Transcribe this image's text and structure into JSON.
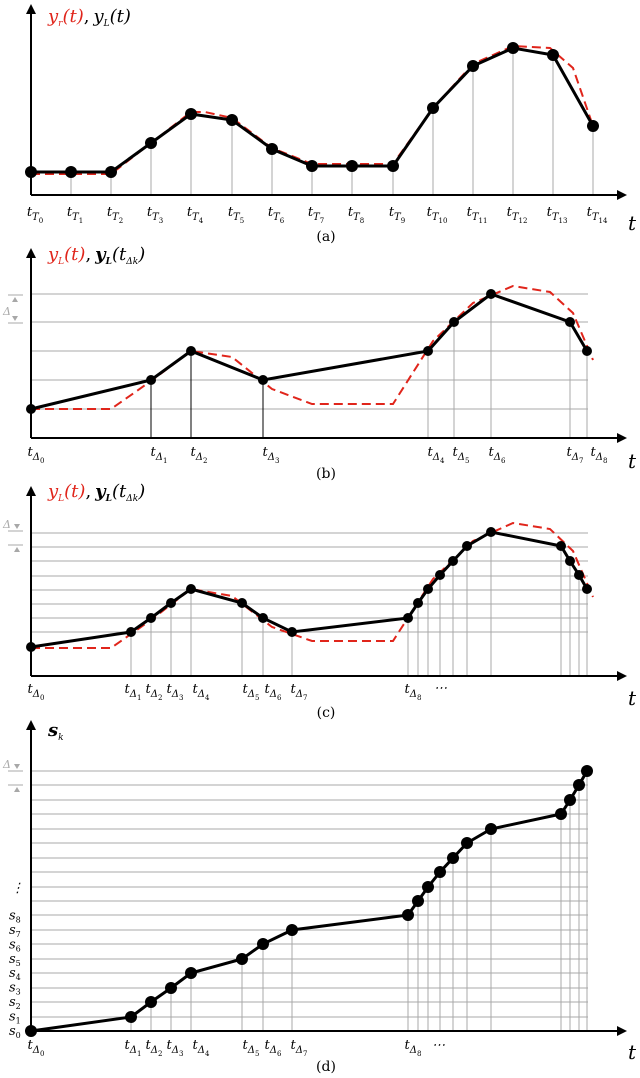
{
  "colors": {
    "red": "#e0251b",
    "black": "#000000",
    "grid": "#a8a8a8"
  },
  "panel_a": {
    "caption": "(a)",
    "axis_label": "t",
    "title": {
      "red": "y_r(t)",
      "black": "y_L(t)",
      "sep": ","
    },
    "ticks": [
      "t_{T_0}",
      "t_{T_1}",
      "t_{T_2}",
      "t_{T_3}",
      "t_{T_4}",
      "t_{T_5}",
      "t_{T_6}",
      "t_{T_7}",
      "t_{T_8}",
      "t_{T_9}",
      "t_{T_10}",
      "t_{T_11}",
      "t_{T_12}",
      "t_{T_13}",
      "t_{T_14}"
    ]
  },
  "panel_b": {
    "caption": "(b)",
    "axis_label": "t",
    "title": {
      "red": "y_L(t)",
      "black": "y_L(t_Δk)",
      "sep": ","
    },
    "delta_label": "Δ",
    "ticks": [
      "t_Δ0",
      "t_Δ1",
      "t_Δ2",
      "t_Δ3",
      "t_Δ4",
      "t_Δ5",
      "t_Δ6",
      "t_Δ7",
      "t_Δ8"
    ]
  },
  "panel_c": {
    "caption": "(c)",
    "axis_label": "t",
    "title": {
      "red": "y_L(t)",
      "black": "y_L(t_Δk)",
      "sep": ","
    },
    "delta_label": "Δ",
    "ticks": [
      "t_Δ0",
      "t_Δ1",
      "t_Δ2",
      "t_Δ3",
      "t_Δ4",
      "t_Δ5",
      "t_Δ6",
      "t_Δ7",
      "t_Δ8"
    ],
    "ellipsis": "⋯"
  },
  "panel_d": {
    "caption": "(d)",
    "axis_label": "t",
    "title": "s_k",
    "delta_label": "Δ",
    "ticks": [
      "t_Δ0",
      "t_Δ1",
      "t_Δ2",
      "t_Δ3",
      "t_Δ4",
      "t_Δ5",
      "t_Δ6",
      "t_Δ7",
      "t_Δ8"
    ],
    "ellipsis": "⋯",
    "y_ticks": [
      "s0",
      "s1",
      "s2",
      "s3",
      "s4",
      "s5",
      "s6",
      "s7",
      "s8"
    ],
    "y_ellipsis": "⋮"
  }
}
